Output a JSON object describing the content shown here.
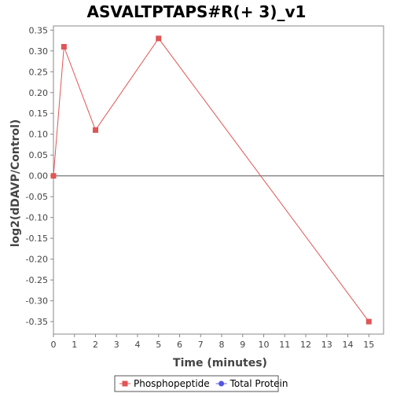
{
  "chart_data": {
    "type": "line",
    "title": "ASVALTPTAPS#R(+ 3)_v1",
    "xlabel": "Time (minutes)",
    "ylabel": "log2(dDAVP/Control)",
    "xlim": [
      0,
      15.7
    ],
    "ylim": [
      -0.38,
      0.36
    ],
    "xticks": [
      0,
      1,
      2,
      3,
      4,
      5,
      6,
      7,
      8,
      9,
      10,
      11,
      12,
      13,
      14,
      15
    ],
    "yticks": [
      0.35,
      0.3,
      0.25,
      0.2,
      0.15,
      0.1,
      0.05,
      0.0,
      -0.05,
      -0.1,
      -0.15,
      -0.2,
      -0.25,
      -0.3,
      -0.35
    ],
    "grid": false,
    "zero_line": true,
    "legend_position": "bottom-center",
    "series": [
      {
        "name": "Phosphopeptide",
        "color": "#e05555",
        "marker": "square",
        "x": [
          0,
          0.5,
          2,
          5,
          15
        ],
        "y": [
          0.0,
          0.31,
          0.11,
          0.33,
          -0.35
        ]
      },
      {
        "name": "Total Protein",
        "color": "#5555e0",
        "marker": "circle",
        "x": [],
        "y": []
      }
    ]
  }
}
